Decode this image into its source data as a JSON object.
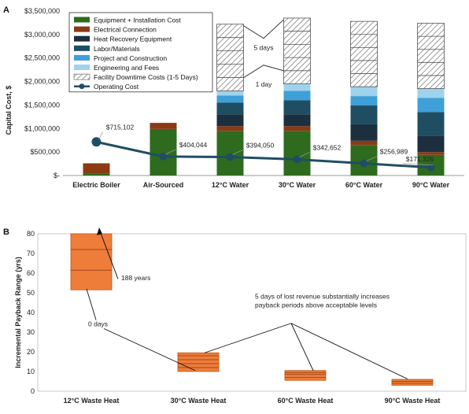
{
  "chart_data": [
    {
      "panel_label": "A",
      "type": "bar",
      "stacked": true,
      "ylabel": "Capital Cost, $",
      "ylim": [
        0,
        3500000
      ],
      "y_ticks": [
        "$-",
        "$500,000",
        "$1,000,000",
        "$1,500,000",
        "$2,000,000",
        "$2,500,000",
        "$3,000,000",
        "$3,500,000"
      ],
      "categories": [
        "Electric Boiler",
        "Air-Sourced",
        "12°C Water",
        "30°C Water",
        "60°C Water",
        "90°C Water"
      ],
      "series": [
        {
          "name": "Equipment + Installation Cost",
          "color": "#2e6b1e",
          "values": [
            40000,
            990000,
            950000,
            950000,
            650000,
            440000
          ]
        },
        {
          "name": "Electrical Connection",
          "color": "#8b3a14",
          "values": [
            220000,
            130000,
            100000,
            100000,
            90000,
            60000
          ]
        },
        {
          "name": "Heat Recovery Equipment",
          "color": "#1b2f3f",
          "values": [
            0,
            0,
            250000,
            250000,
            350000,
            350000
          ]
        },
        {
          "name": "Labor/Materials",
          "color": "#1f4e63",
          "values": [
            0,
            0,
            250000,
            300000,
            400000,
            500000
          ]
        },
        {
          "name": "Project and Construction",
          "color": "#3fa0d8",
          "values": [
            0,
            0,
            150000,
            200000,
            200000,
            300000
          ]
        },
        {
          "name": "Engineering and Fees",
          "color": "#9fd3ec",
          "values": [
            0,
            0,
            100000,
            150000,
            200000,
            200000
          ]
        },
        {
          "name": "Facility Downtime Costs (1-5 Days)",
          "color": "#ffffff",
          "values": [
            0,
            0,
            1420000,
            1400000,
            1390000,
            1390000
          ]
        }
      ],
      "line_series": {
        "name": "Operating Cost",
        "color": "#1f4e63",
        "values": [
          715102,
          404044,
          394050,
          342652,
          256989,
          171326
        ]
      },
      "data_labels": [
        "$715,102",
        "$404,044",
        "$394,050",
        "$342,652",
        "$256,989",
        "$171,326"
      ],
      "annotations": [
        "5 days",
        "1 day"
      ]
    },
    {
      "panel_label": "B",
      "type": "box",
      "ylabel": "Incremental Payback Range (yrs)",
      "ylim": [
        0,
        80
      ],
      "y_ticks": [
        "0",
        "10",
        "20",
        "30",
        "40",
        "50",
        "60",
        "70",
        "80"
      ],
      "categories": [
        "12°C Waste Heat",
        "30°C Waste Heat",
        "60°C Waste Heat",
        "90°C Waste Heat"
      ],
      "ranges": [
        {
          "low": 51.5,
          "high": 80,
          "lines": [
            61.5,
            72
          ]
        },
        {
          "low": 10,
          "high": 19.5,
          "lines": [
            12,
            14,
            16,
            18
          ]
        },
        {
          "low": 5.5,
          "high": 10.5,
          "lines": [
            7,
            8.5,
            9.5
          ]
        },
        {
          "low": 3,
          "high": 6,
          "lines": [
            4,
            5
          ]
        }
      ],
      "color": "#ee7d3a",
      "annotations": [
        "188 years",
        "0 days",
        "5 days of lost revenue substantially increases payback periods above acceptable levels"
      ]
    }
  ]
}
